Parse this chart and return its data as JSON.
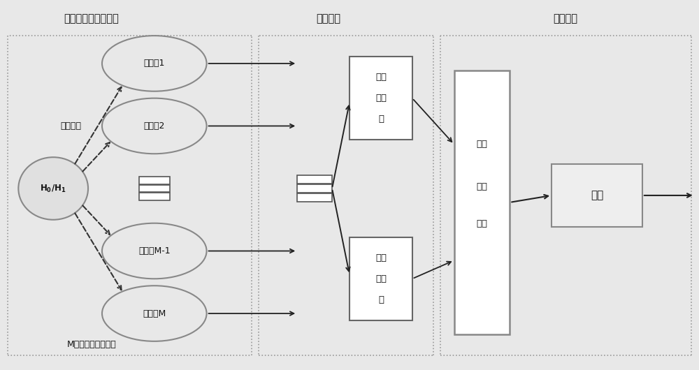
{
  "title_left": "双门限能量频谱感知",
  "title_mid": "融合策略",
  "title_right": "综合决策",
  "sense_channel": "感知信道",
  "m_users_label": "M个协作感知次用户",
  "users": [
    "次用户1",
    "次用户2",
    "次用户M-1",
    "次用户M"
  ],
  "hard_fusion_lines": [
    "硬融",
    "合策",
    "略"
  ],
  "soft_fusion_lines": [
    "软融",
    "合策",
    "略"
  ],
  "data_center_lines": [
    "数据",
    "融合",
    "中心"
  ],
  "decision": "判决",
  "h_label_line1": "H",
  "bg_color": "#e8e8e8",
  "white": "#ffffff",
  "border_color": "#666666",
  "dot_color": "#888888",
  "arrow_color": "#222222",
  "text_color": "#111111",
  "green_border": "#aaaaaa",
  "fig_w": 10.0,
  "fig_h": 5.3
}
